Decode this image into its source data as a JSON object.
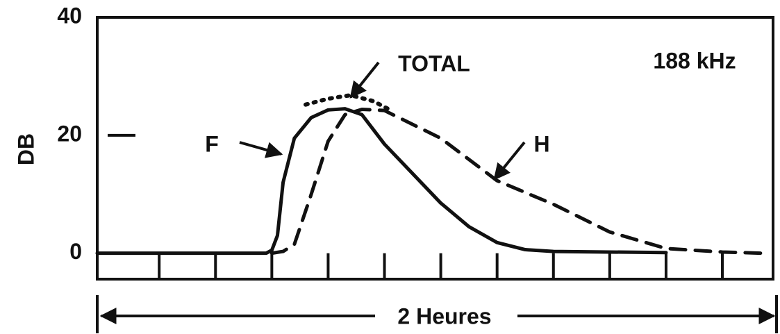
{
  "chart_data": {
    "type": "line",
    "annotation": "188 kHz",
    "xlabel": "2 Heures",
    "ylabel": "DB",
    "xlim": [
      -1.1,
      10.9
    ],
    "xticks": [
      0,
      1,
      2,
      3,
      4,
      5,
      6,
      7,
      8,
      9,
      10
    ],
    "ylim": [
      -4.4,
      40
    ],
    "yticks": [
      0,
      20,
      40
    ],
    "series": [
      {
        "name": "F",
        "color": "#111111",
        "style": "solid",
        "x": [
          -1.1,
          0,
          1,
          1.9,
          2.0,
          2.1,
          2.2,
          2.4,
          2.7,
          3.0,
          3.3,
          3.6,
          4.0,
          4.5,
          5.0,
          5.5,
          6.0,
          6.5,
          7,
          8,
          9
        ],
        "values": [
          0,
          0,
          0,
          0,
          0.5,
          3,
          12,
          19.5,
          23,
          24.3,
          24.5,
          23.5,
          18.5,
          13.5,
          8.5,
          4.5,
          1.8,
          0.6,
          0.3,
          0.2,
          0.1
        ]
      },
      {
        "name": "H",
        "color": "#111111",
        "style": "dashed",
        "x": [
          2.0,
          2.2,
          2.4,
          2.7,
          3.0,
          3.3,
          3.6,
          4.0,
          5.0,
          6.0,
          7.0,
          8.0,
          9.0,
          10.0,
          10.7
        ],
        "values": [
          0,
          0.3,
          1.5,
          10,
          19,
          23.5,
          24.4,
          24.2,
          19.5,
          12.3,
          8.3,
          3.6,
          0.8,
          0.2,
          0
        ]
      },
      {
        "name": "TOTAL",
        "color": "#111111",
        "style": "dotted",
        "x": [
          2.6,
          3.0,
          3.4,
          3.8,
          4.1
        ],
        "values": [
          25.2,
          26.2,
          26.8,
          25.8,
          24.3
        ]
      }
    ]
  }
}
